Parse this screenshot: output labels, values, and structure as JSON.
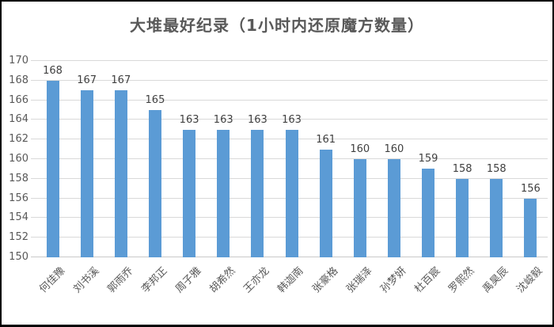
{
  "chart_data": {
    "type": "bar",
    "title": "大堆最好纪录（1小时内还原魔方数量）",
    "categories": [
      "何佳豫",
      "刘书溪",
      "郭雨乔",
      "李邦正",
      "周子雅",
      "胡希然",
      "王亦龙",
      "韩迦南",
      "张豪格",
      "张瑞泽",
      "孙梦妍",
      "杜百宸",
      "罗熙然",
      "禹昊辰",
      "沈峻毅"
    ],
    "values": [
      168,
      167,
      167,
      165,
      163,
      163,
      163,
      163,
      161,
      160,
      160,
      159,
      158,
      158,
      156
    ],
    "xlabel": "",
    "ylabel": "",
    "ylim": [
      150,
      170
    ],
    "ytick_step": 2,
    "yticks": [
      150,
      152,
      154,
      156,
      158,
      160,
      162,
      164,
      166,
      168,
      170
    ],
    "grid": "horizontal",
    "legend": "none",
    "data_labels": "above-bars",
    "bar_color": "#5b9bd5",
    "gridline_color": "#d9d9d9",
    "title_color": "#595959",
    "tick_label_color": "#595959",
    "value_label_color": "#404040",
    "frame_border_color": "#000000",
    "background_color": "#ffffff"
  }
}
